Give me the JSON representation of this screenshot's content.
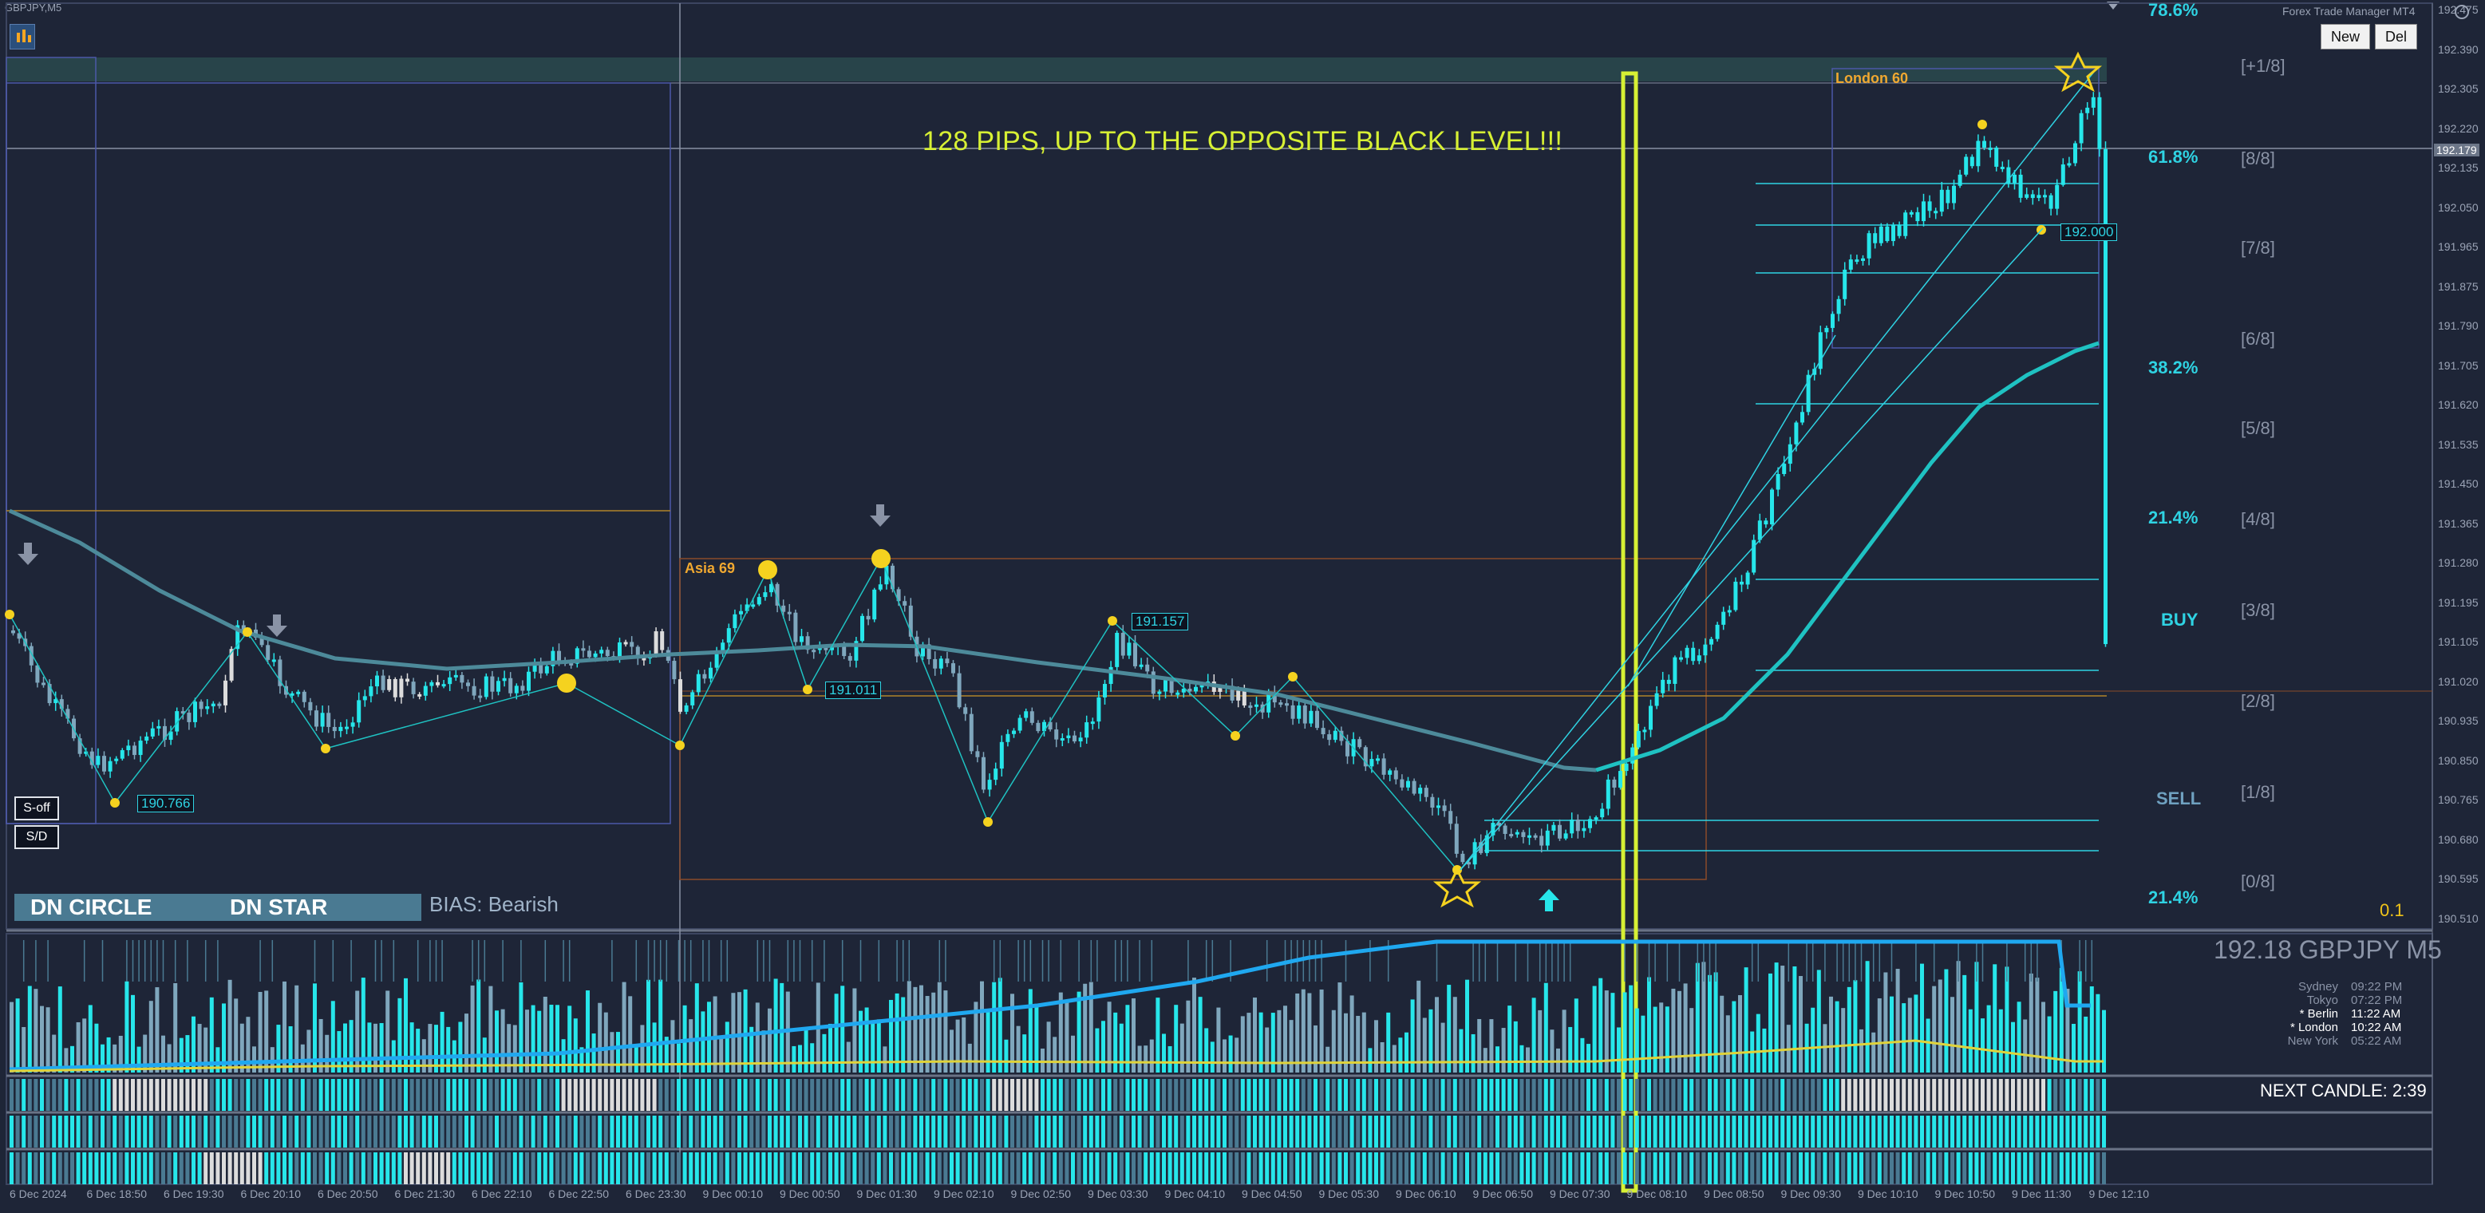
{
  "window": {
    "title": "GBPJPY,M5",
    "panel_name": "Forex Trade Manager MT4"
  },
  "toolbar": {
    "new_label": "New",
    "del_label": "Del"
  },
  "annotation": {
    "banner": "128 PIPS, UP TO THE OPPOSITE BLACK LEVEL!!!"
  },
  "sessions_boxes": {
    "asia": "Asia 69",
    "london": "London 60"
  },
  "price_labels": {
    "p1": "190.766",
    "p2": "191.011",
    "p3": "191.157",
    "p4": "192.000",
    "current": "192.179"
  },
  "buttons": {
    "s_off": "S-off",
    "sd": "S/D"
  },
  "panels": {
    "circle": "DN CIRCLE",
    "star": "DN STAR",
    "bias": "BIAS: Bearish"
  },
  "fib": [
    {
      "label": "78.6%",
      "top": 0
    },
    {
      "label": "61.8%",
      "top": 0
    },
    {
      "label": "38.2%",
      "top": 0
    },
    {
      "label": "21.4%",
      "top": 0
    },
    {
      "label": "21.4%",
      "top": 0
    }
  ],
  "octaves": [
    "[+1/8]",
    "[8/8]",
    "[7/8]",
    "[6/8]",
    "[5/8]",
    "[4/8]",
    "[3/8]",
    "[2/8]",
    "[1/8]",
    "[0/8]"
  ],
  "side": {
    "buy": "BUY",
    "sell": "SELL",
    "tp": "0.1"
  },
  "price_axis": [
    "192.475",
    "192.390",
    "192.305",
    "192.220",
    "192.135",
    "192.050",
    "191.965",
    "191.875",
    "191.790",
    "191.705",
    "191.620",
    "191.535",
    "191.450",
    "191.365",
    "191.280",
    "191.195",
    "191.105",
    "191.020",
    "190.935",
    "190.850",
    "190.765",
    "190.680",
    "190.595",
    "190.510"
  ],
  "time_axis": [
    "6 Dec 2024",
    "6 Dec 18:50",
    "6 Dec 19:30",
    "6 Dec 20:10",
    "6 Dec 20:50",
    "6 Dec 21:30",
    "6 Dec 22:10",
    "6 Dec 22:50",
    "6 Dec 23:30",
    "9 Dec 00:10",
    "9 Dec 00:50",
    "9 Dec 01:30",
    "9 Dec 02:10",
    "9 Dec 02:50",
    "9 Dec 03:30",
    "9 Dec 04:10",
    "9 Dec 04:50",
    "9 Dec 05:30",
    "9 Dec 06:10",
    "9 Dec 06:50",
    "9 Dec 07:30",
    "9 Dec 08:10",
    "9 Dec 08:50",
    "9 Dec 09:30",
    "9 Dec 10:10",
    "9 Dec 10:50",
    "9 Dec 11:30",
    "9 Dec 12:10"
  ],
  "quote": {
    "text": "192.18 GBPJPY M5"
  },
  "session_clock": [
    {
      "name": "Sydney",
      "time": "09:22 PM",
      "active": false
    },
    {
      "name": "Tokyo",
      "time": "07:22 PM",
      "active": false
    },
    {
      "name": "* Berlin",
      "time": "11:22 AM",
      "active": true
    },
    {
      "name": "* London",
      "time": "10:22 AM",
      "active": true
    },
    {
      "name": "New York",
      "time": "05:22 AM",
      "active": false
    }
  ],
  "next_candle": "NEXT CANDLE: 2:39",
  "colors": {
    "bg": "#1e2537",
    "bull": "#27e6ea",
    "bear": "#7fa7bd",
    "neutral": "#dcdcdc",
    "ma": "#4d8a9a",
    "ma2": "#1fc2c2",
    "highlight": "#d7f034",
    "gold": "#f5d21f"
  }
}
